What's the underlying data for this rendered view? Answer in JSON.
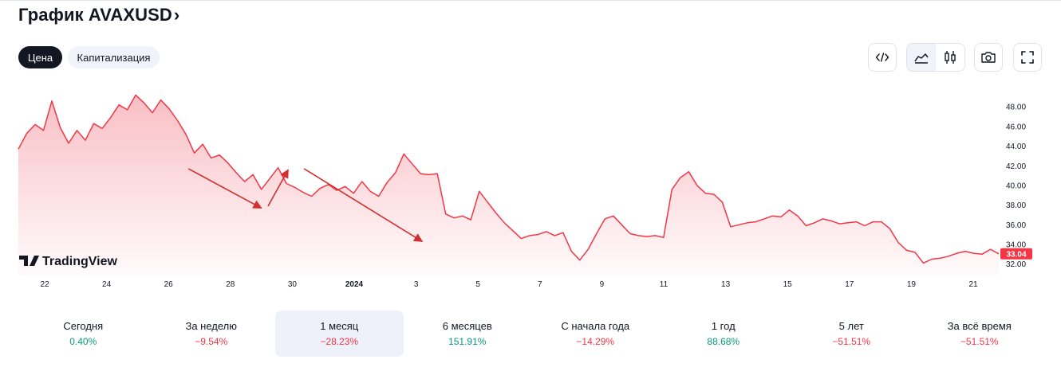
{
  "header": {
    "title": "График AVAXUSD",
    "chevron": "›"
  },
  "tabs": [
    {
      "label": "Цена",
      "active": true
    },
    {
      "label": "Капитализация",
      "active": false
    }
  ],
  "toolbar": {
    "embed_icon": "code-icon",
    "line_icon": "area-chart-icon",
    "candles_icon": "candlestick-icon",
    "snapshot_icon": "camera-icon",
    "fullscreen_icon": "fullscreen-icon"
  },
  "chart": {
    "watermark": "TradingView",
    "current_price": "33.04",
    "colors": {
      "line": "#f23645",
      "arrow": "#d32f2f",
      "fill_top": "#f7a9b1"
    }
  },
  "chart_data": {
    "type": "area",
    "series": [
      {
        "values": [
          43.7,
          45.3,
          46.2,
          45.6,
          48.6,
          45.9,
          44.3,
          45.6,
          44.6,
          46.3,
          45.8,
          46.9,
          48.2,
          47.7,
          49.2,
          48.4,
          47.4,
          48.7,
          47.8,
          46.6,
          45.2,
          43.3,
          44.2,
          42.8,
          43.1,
          42.3,
          41.3,
          40.4,
          41.1,
          39.6,
          40.7,
          41.8,
          40.2,
          39.8,
          39.3,
          38.9,
          39.7,
          40.1,
          39.5,
          39.9,
          39.2,
          40.4,
          39.4,
          38.9,
          40.3,
          41.3,
          43.2,
          42.2,
          41.2,
          41.1,
          41.2,
          37.1,
          36.7,
          36.9,
          36.5,
          39.4,
          38.3,
          37.2,
          36.2,
          35.4,
          34.6,
          34.9,
          35.0,
          35.3,
          34.9,
          35.2,
          33.3,
          32.4,
          33.5,
          35.1,
          36.6,
          36.9,
          36.0,
          35.1,
          34.9,
          34.8,
          34.9,
          34.7,
          39.6,
          40.8,
          41.4,
          40.0,
          39.2,
          39.1,
          38.3,
          35.8,
          36.0,
          36.2,
          36.3,
          36.6,
          36.9,
          36.8,
          37.5,
          36.9,
          35.9,
          36.2,
          36.6,
          36.4,
          36.1,
          36.2,
          36.3,
          35.9,
          36.3,
          36.3,
          35.6,
          34.2,
          33.4,
          33.2,
          32.1,
          32.5,
          32.6,
          32.8,
          33.1,
          33.3,
          33.1,
          33.0,
          33.5,
          33.04
        ]
      }
    ],
    "x_ticks": [
      "22",
      "24",
      "26",
      "28",
      "30",
      "2024",
      "3",
      "5",
      "7",
      "9",
      "11",
      "13",
      "15",
      "17",
      "19",
      "21"
    ],
    "y_ticks": [
      "32.00",
      "34.00",
      "36.00",
      "38.00",
      "40.00",
      "42.00",
      "44.00",
      "46.00",
      "48.00"
    ],
    "ylim": [
      31.0,
      49.8
    ],
    "grid": false,
    "annotations": [
      {
        "type": "arrow",
        "from": [
          20.3,
          41.7
        ],
        "to": [
          29.0,
          37.7
        ]
      },
      {
        "type": "arrow",
        "from": [
          29.8,
          37.9
        ],
        "to": [
          32.2,
          41.6
        ]
      },
      {
        "type": "arrow",
        "from": [
          34.1,
          41.7
        ],
        "to": [
          48.2,
          34.3
        ]
      }
    ]
  },
  "stats": [
    {
      "label": "Сегодня",
      "value": "0.40%",
      "trend": "pos"
    },
    {
      "label": "За неделю",
      "value": "−9.54%",
      "trend": "neg"
    },
    {
      "label": "1 месяц",
      "value": "−28.23%",
      "trend": "neg",
      "active": true
    },
    {
      "label": "6 месяцев",
      "value": "151.91%",
      "trend": "pos"
    },
    {
      "label": "С начала года",
      "value": "−14.29%",
      "trend": "neg"
    },
    {
      "label": "1 год",
      "value": "88.68%",
      "trend": "pos"
    },
    {
      "label": "5 лет",
      "value": "−51.51%",
      "trend": "neg"
    },
    {
      "label": "За всё время",
      "value": "−51.51%",
      "trend": "neg"
    }
  ]
}
